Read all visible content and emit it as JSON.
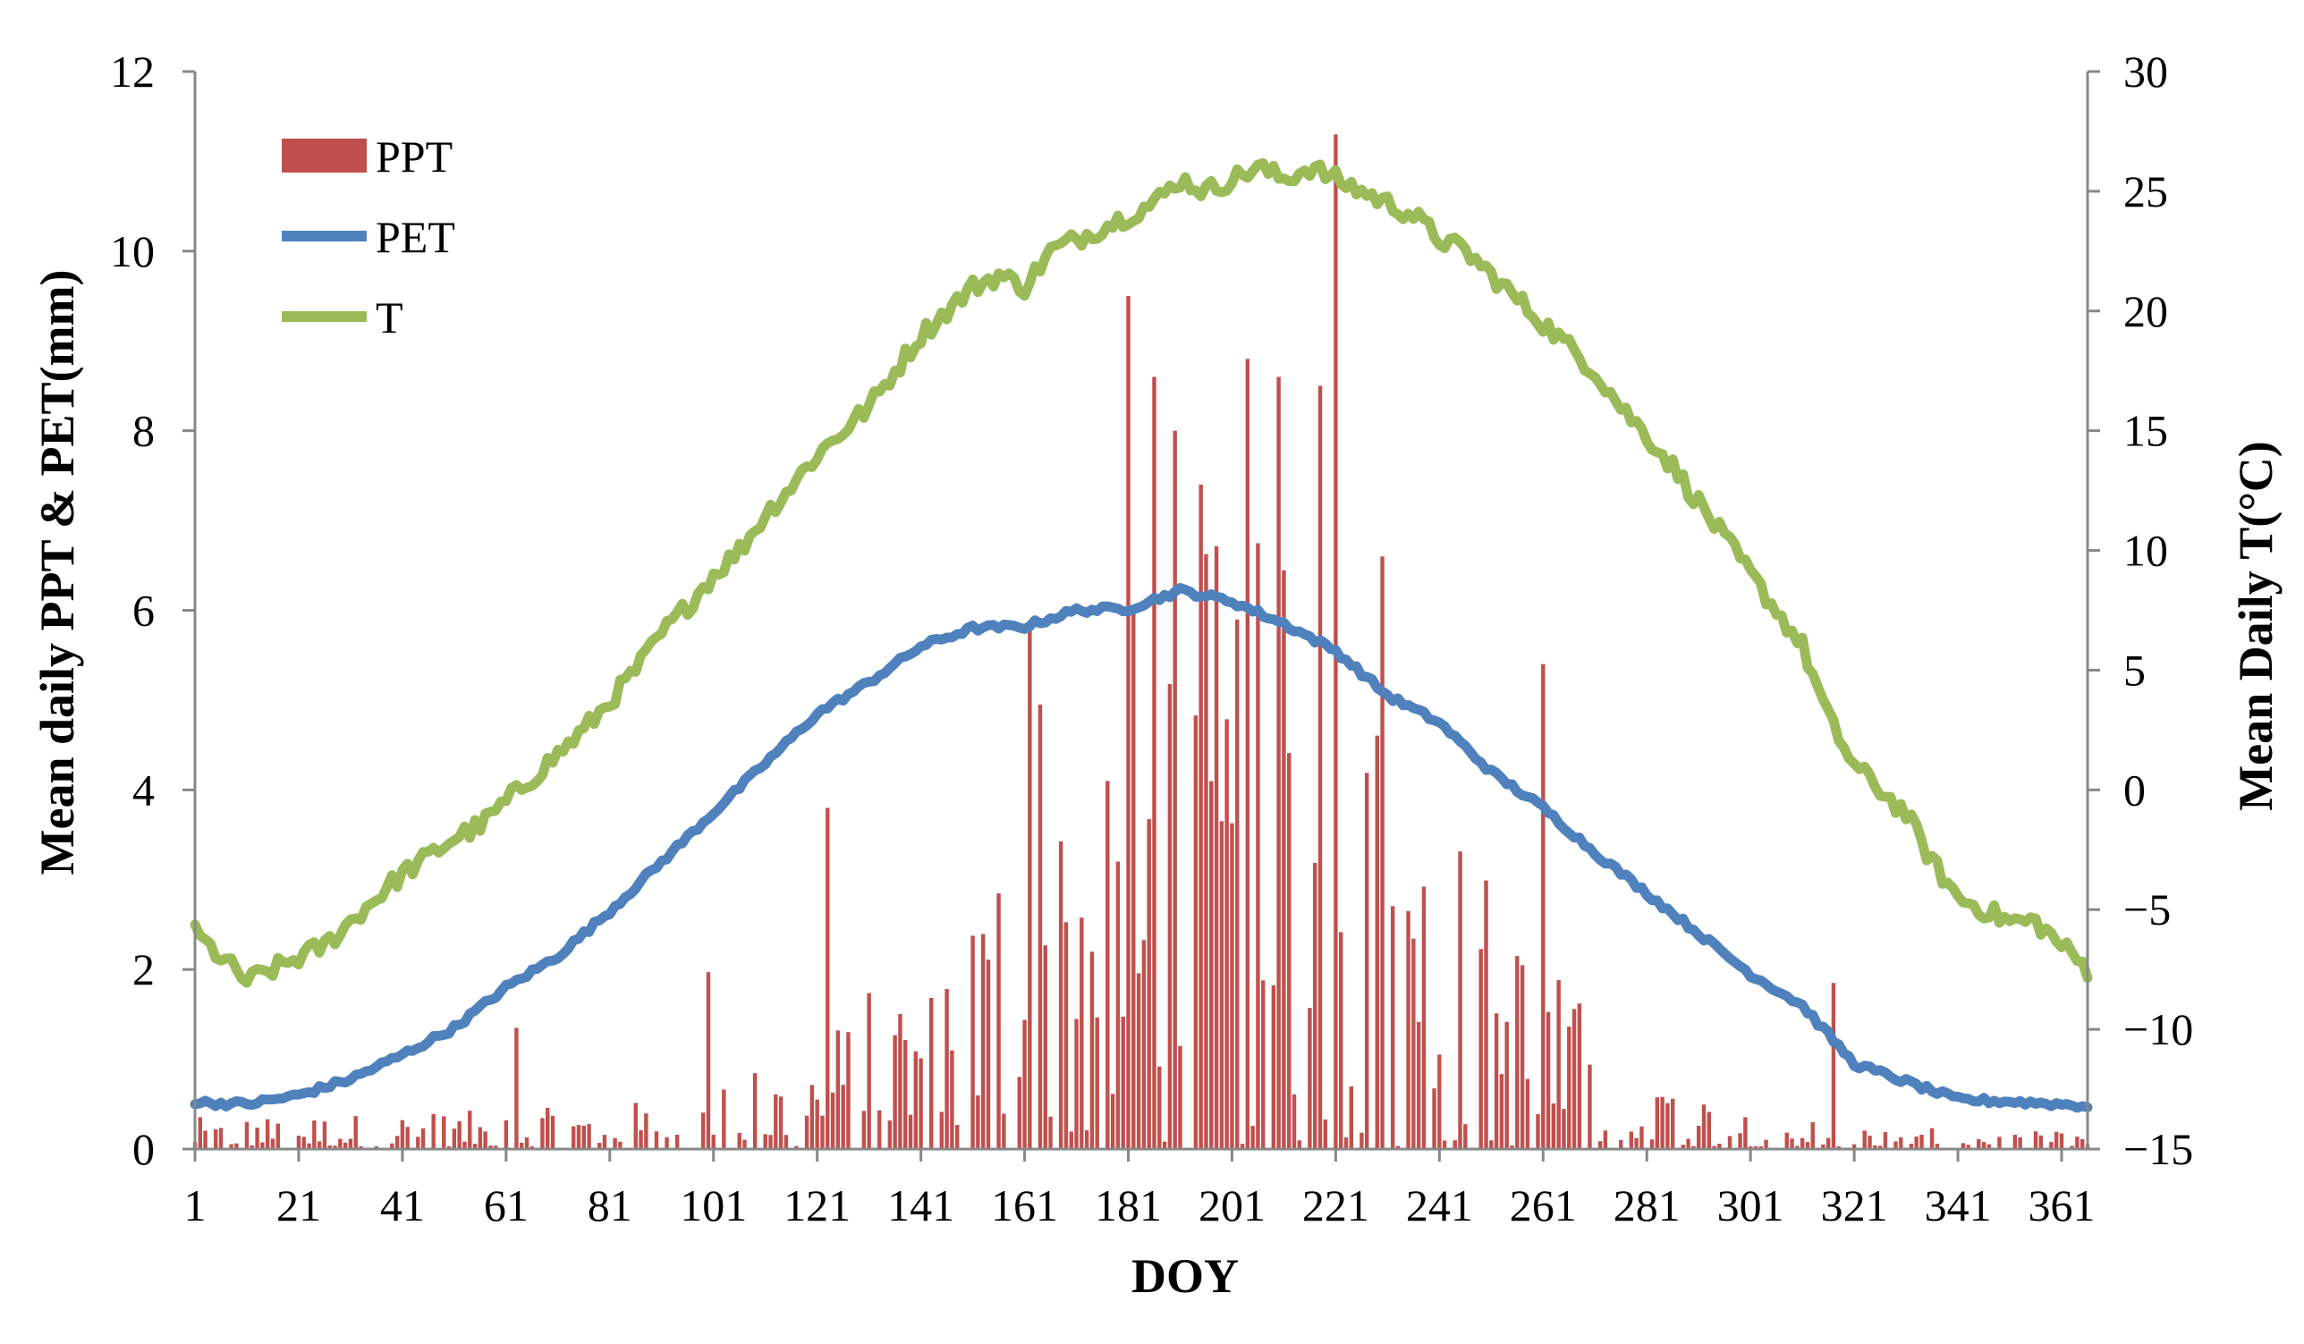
{
  "chart_data": {
    "type": "combo",
    "title": "",
    "xlabel": "DOY",
    "ylabel_left": "Mean daily PPT & PET(mm)",
    "ylabel_right": "Mean Daily T(°C)",
    "xlim": [
      1,
      366
    ],
    "ylim_left": [
      0,
      12
    ],
    "ylim_right": [
      -15,
      30
    ],
    "x_ticks": [
      1,
      21,
      41,
      61,
      81,
      101,
      121,
      141,
      161,
      181,
      201,
      221,
      241,
      261,
      281,
      301,
      321,
      341,
      361
    ],
    "y_ticks_left": [
      0,
      2,
      4,
      6,
      8,
      10,
      12
    ],
    "y_ticks_right": [
      -15,
      -10,
      -5,
      0,
      5,
      10,
      15,
      20,
      25,
      30
    ],
    "grid": false,
    "legend_position": "top-left",
    "legend": [
      {
        "name": "PPT",
        "kind": "bar",
        "color": "#C0504D"
      },
      {
        "name": "PET",
        "kind": "line",
        "color": "#4F81BD"
      },
      {
        "name": "T",
        "kind": "line",
        "color": "#9BBB59"
      }
    ],
    "series_meta": {
      "PPT": {
        "axis": "left",
        "color": "#C0504D",
        "note": "daily mean precipitation, bars at each DOY"
      },
      "PET": {
        "axis": "left",
        "color": "#4F81BD"
      },
      "T": {
        "axis": "right",
        "color": "#9BBB59"
      }
    },
    "ppt_notable_peaks": [
      {
        "doy": 63,
        "value": 1.35
      },
      {
        "doy": 100,
        "value": 1.97
      },
      {
        "doy": 123,
        "value": 3.8
      },
      {
        "doy": 162,
        "value": 5.8
      },
      {
        "doy": 164,
        "value": 4.95
      },
      {
        "doy": 181,
        "value": 9.5
      },
      {
        "doy": 186,
        "value": 8.6
      },
      {
        "doy": 190,
        "value": 8.0
      },
      {
        "doy": 195,
        "value": 7.4
      },
      {
        "doy": 204,
        "value": 8.8
      },
      {
        "doy": 210,
        "value": 8.6
      },
      {
        "doy": 218,
        "value": 8.5
      },
      {
        "doy": 221,
        "value": 11.3
      },
      {
        "doy": 230,
        "value": 6.6
      },
      {
        "doy": 261,
        "value": 5.4
      },
      {
        "doy": 317,
        "value": 1.85
      }
    ],
    "pet_points": [
      [
        1,
        0.52
      ],
      [
        11,
        0.5
      ],
      [
        21,
        0.6
      ],
      [
        31,
        0.78
      ],
      [
        41,
        1.05
      ],
      [
        51,
        1.35
      ],
      [
        61,
        1.8
      ],
      [
        71,
        2.15
      ],
      [
        81,
        2.65
      ],
      [
        91,
        3.2
      ],
      [
        101,
        3.75
      ],
      [
        111,
        4.3
      ],
      [
        121,
        4.85
      ],
      [
        131,
        5.2
      ],
      [
        141,
        5.6
      ],
      [
        151,
        5.8
      ],
      [
        161,
        5.82
      ],
      [
        171,
        6.0
      ],
      [
        181,
        6.02
      ],
      [
        191,
        6.22
      ],
      [
        201,
        6.1
      ],
      [
        211,
        5.85
      ],
      [
        221,
        5.55
      ],
      [
        231,
        5.05
      ],
      [
        241,
        4.75
      ],
      [
        251,
        4.2
      ],
      [
        261,
        3.8
      ],
      [
        271,
        3.3
      ],
      [
        281,
        2.85
      ],
      [
        291,
        2.4
      ],
      [
        301,
        1.95
      ],
      [
        311,
        1.6
      ],
      [
        321,
        0.95
      ],
      [
        331,
        0.75
      ],
      [
        341,
        0.55
      ],
      [
        351,
        0.53
      ],
      [
        361,
        0.5
      ],
      [
        366,
        0.48
      ]
    ],
    "t_points": [
      [
        1,
        -6.0
      ],
      [
        6,
        -7.0
      ],
      [
        11,
        -8.0
      ],
      [
        16,
        -7.5
      ],
      [
        21,
        -7.0
      ],
      [
        26,
        -6.5
      ],
      [
        31,
        -5.5
      ],
      [
        36,
        -4.5
      ],
      [
        41,
        -3.5
      ],
      [
        46,
        -2.8
      ],
      [
        51,
        -2.0
      ],
      [
        56,
        -1.5
      ],
      [
        61,
        -0.5
      ],
      [
        66,
        0.5
      ],
      [
        71,
        1.5
      ],
      [
        76,
        2.5
      ],
      [
        81,
        3.7
      ],
      [
        86,
        5.0
      ],
      [
        91,
        6.5
      ],
      [
        96,
        7.7
      ],
      [
        101,
        9.0
      ],
      [
        106,
        10.0
      ],
      [
        111,
        11.5
      ],
      [
        116,
        12.7
      ],
      [
        121,
        14.0
      ],
      [
        126,
        15.0
      ],
      [
        131,
        16.0
      ],
      [
        136,
        17.5
      ],
      [
        141,
        19.0
      ],
      [
        146,
        20.0
      ],
      [
        151,
        21.0
      ],
      [
        156,
        21.5
      ],
      [
        161,
        21.0
      ],
      [
        166,
        22.5
      ],
      [
        171,
        23.0
      ],
      [
        176,
        23.5
      ],
      [
        181,
        24.0
      ],
      [
        186,
        24.5
      ],
      [
        191,
        25.5
      ],
      [
        196,
        25.0
      ],
      [
        201,
        25.5
      ],
      [
        206,
        26.0
      ],
      [
        211,
        25.5
      ],
      [
        216,
        26.0
      ],
      [
        221,
        25.5
      ],
      [
        226,
        25.0
      ],
      [
        231,
        24.5
      ],
      [
        236,
        24.0
      ],
      [
        241,
        23.0
      ],
      [
        246,
        22.5
      ],
      [
        251,
        21.5
      ],
      [
        256,
        20.5
      ],
      [
        261,
        19.5
      ],
      [
        266,
        18.5
      ],
      [
        271,
        17.5
      ],
      [
        276,
        16.0
      ],
      [
        281,
        14.8
      ],
      [
        286,
        13.5
      ],
      [
        291,
        12.0
      ],
      [
        296,
        10.5
      ],
      [
        301,
        9.0
      ],
      [
        306,
        7.5
      ],
      [
        311,
        6.0
      ],
      [
        316,
        3.0
      ],
      [
        321,
        1.0
      ],
      [
        326,
        0.0
      ],
      [
        331,
        -1.0
      ],
      [
        336,
        -3.0
      ],
      [
        341,
        -4.5
      ],
      [
        346,
        -5.0
      ],
      [
        351,
        -5.5
      ],
      [
        356,
        -5.5
      ],
      [
        361,
        -6.5
      ],
      [
        366,
        -7.5
      ]
    ]
  }
}
